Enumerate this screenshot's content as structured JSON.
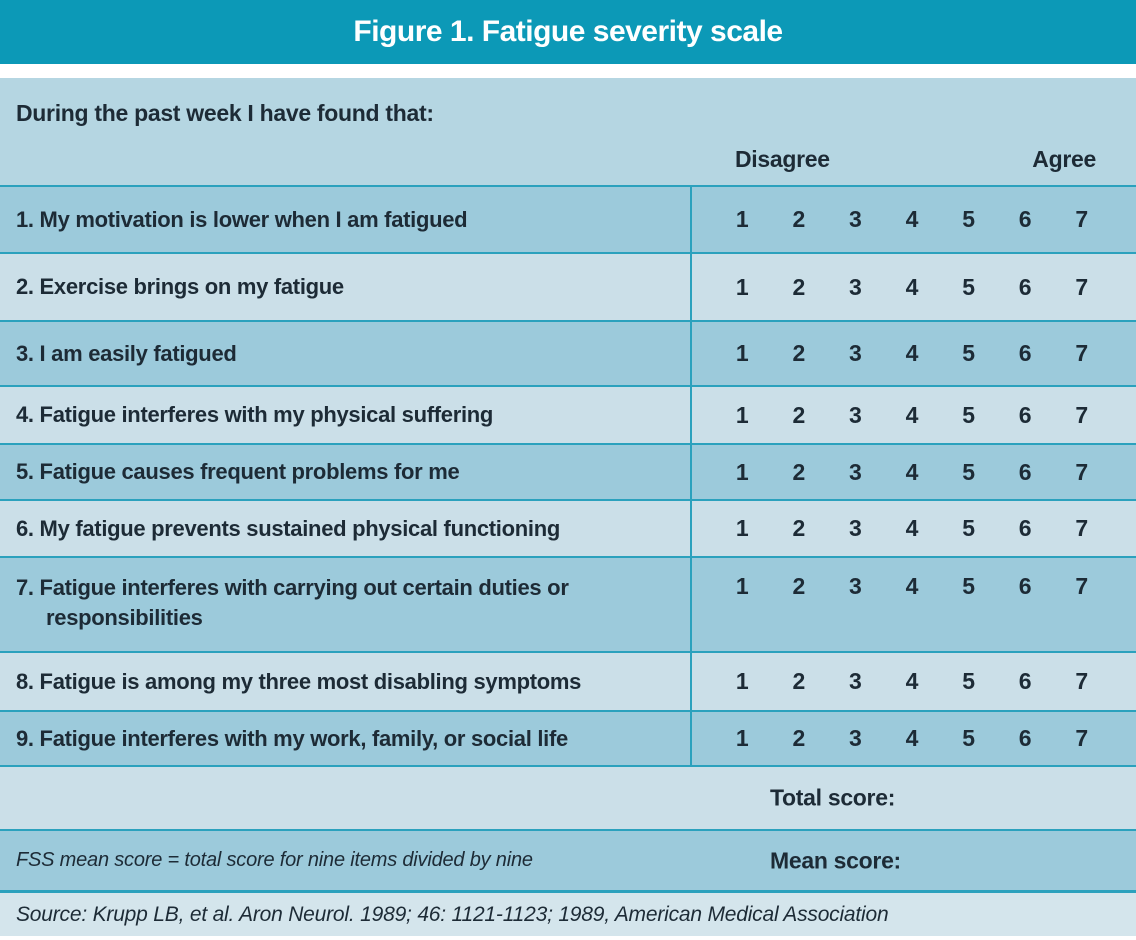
{
  "title": "Figure 1. Fatigue severity scale",
  "table": {
    "prompt": "During the past week I have found that:",
    "scale_left_label": "Disagree",
    "scale_right_label": "Agree",
    "scale_values": [
      "1",
      "2",
      "3",
      "4",
      "5",
      "6",
      "7"
    ],
    "items": [
      {
        "text": "1. My motivation is lower when I am fatigued"
      },
      {
        "text": "2. Exercise brings on my fatigue"
      },
      {
        "text": "3. I am easily fatigued"
      },
      {
        "text": "4. Fatigue interferes with my physical suffering"
      },
      {
        "text": "5. Fatigue causes frequent problems for me"
      },
      {
        "text": "6. My fatigue prevents sustained physical functioning"
      },
      {
        "text": "7. Fatigue interferes with carrying out certain duties or responsibilities"
      },
      {
        "text": "8. Fatigue is among my three most disabling symptoms"
      },
      {
        "text": "9. Fatigue interferes with my work, family, or social life"
      }
    ],
    "total_label": "Total score:",
    "mean_label": "Mean score:",
    "mean_note": "FSS mean score = total score for nine items divided by nine"
  },
  "source": "Source: Krupp LB, et al. Aron Neurol. 1989; 46: 1121-1123; 1989, American Medical Association",
  "colors": {
    "banner_teal": "#0c99b7",
    "divider_teal": "#2ba1bd",
    "row_dark_blue": "#9ccadb",
    "row_light_blue": "#cbdfe8",
    "header_blue": "#b5d6e2",
    "source_blue": "#d4e5ec",
    "text": "#1d2b36",
    "title_text": "#ffffff"
  }
}
